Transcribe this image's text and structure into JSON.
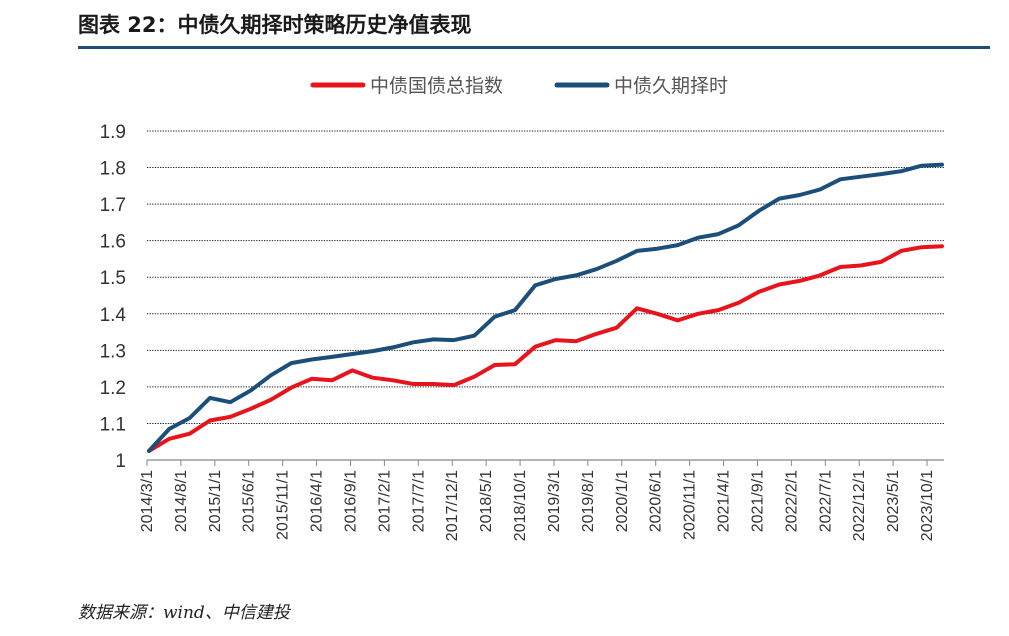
{
  "figure": {
    "title": "图表 22：中债久期择时策略历史净值表现",
    "source": "数据来源：wind、中信建投"
  },
  "chart_data": {
    "type": "line",
    "y_ticks": [
      "1",
      "1.1",
      "1.2",
      "1.3",
      "1.4",
      "1.5",
      "1.6",
      "1.7",
      "1.8",
      "1.9"
    ],
    "ylim": [
      1.0,
      1.9
    ],
    "x_tick_labels": [
      "2014/3/1",
      "2014/8/1",
      "2015/1/1",
      "2015/6/1",
      "2015/11/1",
      "2016/4/1",
      "2016/9/1",
      "2017/2/1",
      "2017/7/1",
      "2017/12/1",
      "2018/5/1",
      "2018/10/1",
      "2019/3/1",
      "2019/8/1",
      "2020/1/1",
      "2020/6/1",
      "2020/11/1",
      "2021/4/1",
      "2021/9/1",
      "2022/2/1",
      "2022/7/1",
      "2022/12/1",
      "2023/5/1",
      "2023/10/1"
    ],
    "grid": "horizontal",
    "legend_position": "top-center",
    "series": [
      {
        "name": "中债国债总指数",
        "color": "#e8141c",
        "values": [
          1.025,
          1.058,
          1.072,
          1.108,
          1.118,
          1.14,
          1.165,
          1.198,
          1.222,
          1.218,
          1.245,
          1.225,
          1.218,
          1.208,
          1.208,
          1.205,
          1.228,
          1.26,
          1.262,
          1.31,
          1.328,
          1.325,
          1.345,
          1.362,
          1.415,
          1.4,
          1.382,
          1.4,
          1.41,
          1.43,
          1.46,
          1.48,
          1.49,
          1.505,
          1.528,
          1.532,
          1.542,
          1.572,
          1.582,
          1.585
        ]
      },
      {
        "name": "中债久期择时",
        "color": "#1b4f7a",
        "values": [
          1.025,
          1.085,
          1.115,
          1.17,
          1.158,
          1.19,
          1.232,
          1.265,
          1.275,
          1.282,
          1.29,
          1.298,
          1.308,
          1.322,
          1.33,
          1.328,
          1.34,
          1.392,
          1.41,
          1.478,
          1.495,
          1.505,
          1.522,
          1.545,
          1.572,
          1.578,
          1.588,
          1.608,
          1.618,
          1.642,
          1.682,
          1.715,
          1.725,
          1.74,
          1.768,
          1.775,
          1.782,
          1.79,
          1.805,
          1.808
        ]
      }
    ]
  }
}
